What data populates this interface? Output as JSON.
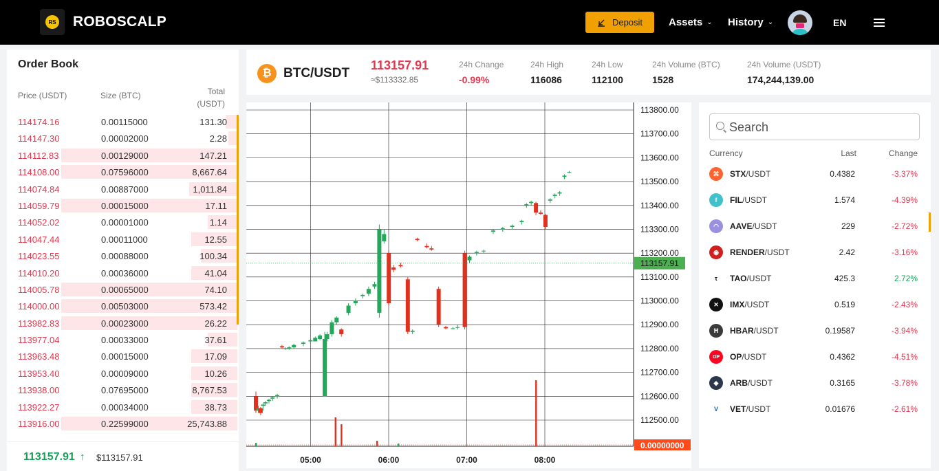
{
  "header": {
    "brand": "ROBOSCALP",
    "logo_text": "RS",
    "deposit_label": "Deposit",
    "nav": [
      {
        "label": "Assets"
      },
      {
        "label": "History"
      }
    ],
    "language": "EN"
  },
  "orderbook": {
    "title": "Order Book",
    "col_price": "Price (USDT)",
    "col_size": "Size (BTC)",
    "col_total_1": "Total",
    "col_total_2": "(USDT)",
    "rows": [
      {
        "price": "114174.16",
        "size": "0.00115000",
        "total": "131.30",
        "depth": 0.05
      },
      {
        "price": "114147.30",
        "size": "0.00002000",
        "total": "2.28",
        "depth": 0.04
      },
      {
        "price": "114112.83",
        "size": "0.00129000",
        "total": "147.21",
        "depth": 0.77
      },
      {
        "price": "114108.00",
        "size": "0.07596000",
        "total": "8,667.64",
        "depth": 0.77
      },
      {
        "price": "114074.84",
        "size": "0.00887000",
        "total": "1,011.84",
        "depth": 0.21
      },
      {
        "price": "114059.79",
        "size": "0.00015000",
        "total": "17.11",
        "depth": 0.77
      },
      {
        "price": "114052.02",
        "size": "0.00001000",
        "total": "1.14",
        "depth": 0.13
      },
      {
        "price": "114047.44",
        "size": "0.00011000",
        "total": "12.55",
        "depth": 0.2
      },
      {
        "price": "114023.55",
        "size": "0.00088000",
        "total": "100.34",
        "depth": 0.16
      },
      {
        "price": "114010.20",
        "size": "0.00036000",
        "total": "41.04",
        "depth": 0.2
      },
      {
        "price": "114005.78",
        "size": "0.00065000",
        "total": "74.10",
        "depth": 0.77
      },
      {
        "price": "114000.00",
        "size": "0.00503000",
        "total": "573.42",
        "depth": 0.77
      },
      {
        "price": "113982.83",
        "size": "0.00023000",
        "total": "26.22",
        "depth": 0.77
      },
      {
        "price": "113977.04",
        "size": "0.00033000",
        "total": "37.61",
        "depth": 0.13
      },
      {
        "price": "113963.48",
        "size": "0.00015000",
        "total": "17.09",
        "depth": 0.2
      },
      {
        "price": "113953.40",
        "size": "0.00009000",
        "total": "10.26",
        "depth": 0.2
      },
      {
        "price": "113938.00",
        "size": "0.07695000",
        "total": "8,767.53",
        "depth": 0.2
      },
      {
        "price": "113922.27",
        "size": "0.00034000",
        "total": "38.73",
        "depth": 0.2
      },
      {
        "price": "113916.00",
        "size": "0.22599000",
        "total": "25,743.88",
        "depth": 0.77
      }
    ],
    "last_price": "113157.91",
    "last_arrow": "↑",
    "last_usd": "$113157.91"
  },
  "ticker": {
    "pair": "BTC/USDT",
    "price": "113157.91",
    "price_usd": "≈$113332.85",
    "stats": [
      {
        "label": "24h Change",
        "value": "-0.99%",
        "neg": true
      },
      {
        "label": "24h High",
        "value": "116086",
        "neg": false
      },
      {
        "label": "24h Low",
        "value": "112100",
        "neg": false
      },
      {
        "label": "24h Volume (BTC)",
        "value": "1528",
        "neg": false
      },
      {
        "label": "24h Volume (USDT)",
        "value": "174,244,139.00",
        "neg": false
      }
    ]
  },
  "chart_data": {
    "type": "candlestick",
    "y_ticks": [
      "113800.00",
      "113700.00",
      "113600.00",
      "113500.00",
      "113400.00",
      "113300.00",
      "113200.00",
      "113100.00",
      "113000.00",
      "112900.00",
      "112800.00",
      "112700.00",
      "112600.00",
      "112500.00"
    ],
    "ylim": [
      112400,
      113850
    ],
    "x_ticks": [
      "05:00",
      "06:00",
      "07:00",
      "08:00"
    ],
    "current_price_label": "113157.91",
    "current_price": 113157.91,
    "volume_label": "0.00000000",
    "colors": {
      "up": "#26a65b",
      "down": "#e0301e",
      "volume_badge": "#ff4a1c",
      "price_badge": "#4caf50"
    },
    "candles": [
      {
        "t": 0.0,
        "o": 112600,
        "h": 112620,
        "l": 112530,
        "c": 112540
      },
      {
        "t": 0.1,
        "o": 112540,
        "h": 112560,
        "l": 112530,
        "c": 112550
      },
      {
        "t": 0.2,
        "o": 112550,
        "h": 112555,
        "l": 112520,
        "c": 112530
      },
      {
        "t": 0.3,
        "o": 112560,
        "h": 112570,
        "l": 112540,
        "c": 112565
      },
      {
        "t": 0.4,
        "o": 112570,
        "h": 112580,
        "l": 112560,
        "c": 112575
      },
      {
        "t": 0.55,
        "o": 112580,
        "h": 112590,
        "l": 112570,
        "c": 112585
      },
      {
        "t": 0.7,
        "o": 112590,
        "h": 112600,
        "l": 112580,
        "c": 112595
      },
      {
        "t": 0.9,
        "o": 112600,
        "h": 112610,
        "l": 112590,
        "c": 112605
      },
      {
        "t": 1.1,
        "o": 112810,
        "h": 112815,
        "l": 112800,
        "c": 112805
      },
      {
        "t": 1.25,
        "o": 112800,
        "h": 112805,
        "l": 112795,
        "c": 112800
      },
      {
        "t": 1.4,
        "o": 112800,
        "h": 112810,
        "l": 112795,
        "c": 112805
      },
      {
        "t": 1.6,
        "o": 112805,
        "h": 112820,
        "l": 112800,
        "c": 112815
      },
      {
        "t": 2.0,
        "o": 112820,
        "h": 112830,
        "l": 112810,
        "c": 112825
      },
      {
        "t": 2.3,
        "o": 112830,
        "h": 112840,
        "l": 112820,
        "c": 112835
      },
      {
        "t": 2.5,
        "o": 112830,
        "h": 112850,
        "l": 112830,
        "c": 112845
      },
      {
        "t": 2.7,
        "o": 112840,
        "h": 112860,
        "l": 112835,
        "c": 112855
      },
      {
        "t": 2.9,
        "o": 112600,
        "h": 112870,
        "l": 112600,
        "c": 112840
      },
      {
        "t": 3.0,
        "o": 112840,
        "h": 112870,
        "l": 112830,
        "c": 112860
      },
      {
        "t": 3.2,
        "o": 112860,
        "h": 112920,
        "l": 112850,
        "c": 112910
      },
      {
        "t": 3.4,
        "o": 112910,
        "h": 112935,
        "l": 112900,
        "c": 112930
      },
      {
        "t": 3.6,
        "o": 112880,
        "h": 112885,
        "l": 112850,
        "c": 112860
      },
      {
        "t": 3.9,
        "o": 112950,
        "h": 112990,
        "l": 112940,
        "c": 112980
      },
      {
        "t": 4.2,
        "o": 112990,
        "h": 113010,
        "l": 112980,
        "c": 113000
      },
      {
        "t": 4.5,
        "o": 113020,
        "h": 113030,
        "l": 113010,
        "c": 113025
      },
      {
        "t": 4.75,
        "o": 113030,
        "h": 113060,
        "l": 113020,
        "c": 113050
      },
      {
        "t": 5.0,
        "o": 113060,
        "h": 113080,
        "l": 113050,
        "c": 113070
      },
      {
        "t": 5.2,
        "o": 112950,
        "h": 113320,
        "l": 112930,
        "c": 113300
      },
      {
        "t": 5.4,
        "o": 113250,
        "h": 113300,
        "l": 113240,
        "c": 113280
      },
      {
        "t": 5.6,
        "o": 113200,
        "h": 113210,
        "l": 112980,
        "c": 112990
      },
      {
        "t": 5.8,
        "o": 113140,
        "h": 113150,
        "l": 113120,
        "c": 113130
      },
      {
        "t": 6.1,
        "o": 113150,
        "h": 113160,
        "l": 113140,
        "c": 113145
      },
      {
        "t": 6.4,
        "o": 113090,
        "h": 113100,
        "l": 112860,
        "c": 112870
      },
      {
        "t": 6.6,
        "o": 112870,
        "h": 112880,
        "l": 112860,
        "c": 112875
      },
      {
        "t": 6.8,
        "o": 113260,
        "h": 113265,
        "l": 113250,
        "c": 113255
      },
      {
        "t": 7.2,
        "o": 113230,
        "h": 113240,
        "l": 113220,
        "c": 113225
      },
      {
        "t": 7.4,
        "o": 113220,
        "h": 113230,
        "l": 113210,
        "c": 113215
      },
      {
        "t": 7.7,
        "o": 113050,
        "h": 113060,
        "l": 112890,
        "c": 112900
      },
      {
        "t": 8.0,
        "o": 112890,
        "h": 112895,
        "l": 112880,
        "c": 112885
      },
      {
        "t": 8.3,
        "o": 112885,
        "h": 112890,
        "l": 112880,
        "c": 112885
      },
      {
        "t": 8.5,
        "o": 112890,
        "h": 112900,
        "l": 112880,
        "c": 112890
      },
      {
        "t": 8.8,
        "o": 113200,
        "h": 113210,
        "l": 112880,
        "c": 112890
      },
      {
        "t": 9.0,
        "o": 113170,
        "h": 113190,
        "l": 113160,
        "c": 113185
      },
      {
        "t": 9.3,
        "o": 113200,
        "h": 113210,
        "l": 113190,
        "c": 113205
      },
      {
        "t": 9.6,
        "o": 113210,
        "h": 113215,
        "l": 113200,
        "c": 113210
      },
      {
        "t": 10.0,
        "o": 113290,
        "h": 113300,
        "l": 113280,
        "c": 113295
      },
      {
        "t": 10.4,
        "o": 113300,
        "h": 113310,
        "l": 113290,
        "c": 113305
      },
      {
        "t": 10.8,
        "o": 113310,
        "h": 113320,
        "l": 113300,
        "c": 113315
      },
      {
        "t": 11.2,
        "o": 113330,
        "h": 113340,
        "l": 113320,
        "c": 113335
      },
      {
        "t": 11.4,
        "o": 113400,
        "h": 113410,
        "l": 113390,
        "c": 113405
      },
      {
        "t": 11.6,
        "o": 113410,
        "h": 113420,
        "l": 113400,
        "c": 113415
      },
      {
        "t": 11.8,
        "o": 113410,
        "h": 113415,
        "l": 113360,
        "c": 113370
      },
      {
        "t": 12.0,
        "o": 113370,
        "h": 113380,
        "l": 113360,
        "c": 113365
      },
      {
        "t": 12.2,
        "o": 113360,
        "h": 113365,
        "l": 113300,
        "c": 113310
      },
      {
        "t": 12.4,
        "o": 113420,
        "h": 113430,
        "l": 113410,
        "c": 113425
      },
      {
        "t": 12.6,
        "o": 113440,
        "h": 113450,
        "l": 113430,
        "c": 113445
      },
      {
        "t": 12.8,
        "o": 113450,
        "h": 113460,
        "l": 113440,
        "c": 113455
      },
      {
        "t": 13.0,
        "o": 113520,
        "h": 113530,
        "l": 113510,
        "c": 113525
      },
      {
        "t": 13.2,
        "o": 113540,
        "h": 113545,
        "l": 113535,
        "c": 113540
      }
    ],
    "volumes": [
      {
        "t": 3.35,
        "v": 0.42,
        "up": false
      },
      {
        "t": 3.6,
        "v": 0.32,
        "up": false
      },
      {
        "t": 5.1,
        "v": 0.08,
        "up": false
      },
      {
        "t": 11.8,
        "v": 0.96,
        "up": false
      },
      {
        "t": 0.0,
        "v": 0.05,
        "up": true
      },
      {
        "t": 6.0,
        "v": 0.04,
        "up": true
      }
    ]
  },
  "market": {
    "search_placeholder": "Search",
    "col_currency": "Currency",
    "col_last": "Last",
    "col_change": "Change",
    "items": [
      {
        "base": "STX",
        "quote": "/USDT",
        "last": "0.4382",
        "change": "-3.37%",
        "up": false,
        "icon": "stx-icon",
        "glyph": "⌘",
        "color": "#fc6432"
      },
      {
        "base": "FIL",
        "quote": "/USDT",
        "last": "1.574",
        "change": "-4.39%",
        "up": false,
        "icon": "fil-icon",
        "glyph": "f",
        "color": "#42c1ca"
      },
      {
        "base": "AAVE",
        "quote": "/USDT",
        "last": "229",
        "change": "-2.72%",
        "up": false,
        "icon": "aave-icon",
        "glyph": "◠",
        "color": "#9a8fe0"
      },
      {
        "base": "RENDER",
        "quote": "/USDT",
        "last": "2.42",
        "change": "-3.16%",
        "up": false,
        "icon": "render-icon",
        "glyph": "◉",
        "color": "#d0201e"
      },
      {
        "base": "TAO",
        "quote": "/USDT",
        "last": "425.3",
        "change": "2.72%",
        "up": true,
        "icon": "tao-icon",
        "glyph": "τ",
        "color": "#ffffff"
      },
      {
        "base": "IMX",
        "quote": "/USDT",
        "last": "0.519",
        "change": "-2.43%",
        "up": false,
        "icon": "imx-icon",
        "glyph": "✕",
        "color": "#111111"
      },
      {
        "base": "HBAR",
        "quote": "/USDT",
        "last": "0.19587",
        "change": "-3.94%",
        "up": false,
        "icon": "hbar-icon",
        "glyph": "Ħ",
        "color": "#3a3a3a"
      },
      {
        "base": "OP",
        "quote": "/USDT",
        "last": "0.4362",
        "change": "-4.51%",
        "up": false,
        "icon": "op-icon",
        "glyph": "OP",
        "color": "#ff0420"
      },
      {
        "base": "ARB",
        "quote": "/USDT",
        "last": "0.3165",
        "change": "-3.78%",
        "up": false,
        "icon": "arb-icon",
        "glyph": "◆",
        "color": "#2d374b"
      },
      {
        "base": "VET",
        "quote": "/USDT",
        "last": "0.01676",
        "change": "-2.61%",
        "up": false,
        "icon": "vet-icon",
        "glyph": "V",
        "color": "#ffffff"
      }
    ]
  }
}
